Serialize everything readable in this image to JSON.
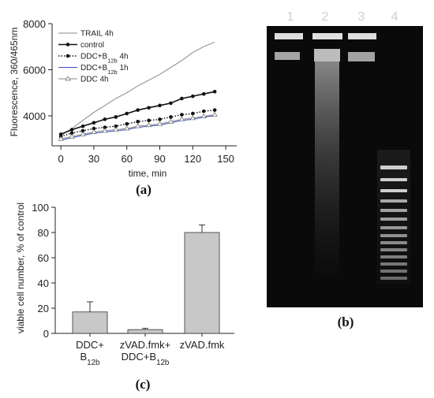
{
  "colors": {
    "axis": "#222222",
    "bar_fill": "#c8c8c8",
    "gel_bg": "#0a0a0a",
    "band": "#d8d8d8"
  },
  "chart_data": [
    {
      "id": "a",
      "type": "line",
      "panel_label": "(a)",
      "xlabel": "time, min",
      "ylabel": "Fluorescence, 360/465nm",
      "xlim": [
        -8,
        160
      ],
      "ylim": [
        2700,
        8000
      ],
      "xticks": [
        0,
        30,
        60,
        90,
        120,
        150
      ],
      "yticks": [
        4000,
        6000,
        8000
      ],
      "x": [
        0,
        10,
        20,
        30,
        40,
        50,
        60,
        70,
        80,
        90,
        100,
        110,
        120,
        130,
        140
      ],
      "series": [
        {
          "name": "TRAIL 4h",
          "style": "solid-gray",
          "values": [
            3150,
            3450,
            3800,
            4150,
            4450,
            4750,
            5000,
            5300,
            5550,
            5800,
            6100,
            6400,
            6750,
            7000,
            7200
          ]
        },
        {
          "name": "control",
          "style": "solid-black-dot",
          "values": [
            3200,
            3400,
            3550,
            3700,
            3850,
            3950,
            4100,
            4250,
            4350,
            4450,
            4550,
            4750,
            4850,
            4950,
            5050
          ]
        },
        {
          "name": "DDC+B12b 4h",
          "style": "dotted-black-dot",
          "values": [
            3100,
            3250,
            3350,
            3450,
            3500,
            3550,
            3650,
            3750,
            3800,
            3850,
            3950,
            4050,
            4100,
            4200,
            4250
          ]
        },
        {
          "name": "DDC+B12b 1h",
          "style": "solid-blue",
          "values": [
            2950,
            3050,
            3150,
            3250,
            3300,
            3350,
            3400,
            3500,
            3550,
            3600,
            3700,
            3800,
            3850,
            3950,
            4000
          ]
        },
        {
          "name": "DDC 4h",
          "style": "solid-gray-triangle",
          "values": [
            3000,
            3100,
            3200,
            3300,
            3350,
            3400,
            3450,
            3550,
            3600,
            3650,
            3750,
            3850,
            3900,
            3980,
            4050
          ]
        }
      ],
      "legend": [
        {
          "parts": [
            {
              "t": "TRAIL 4h"
            }
          ]
        },
        {
          "parts": [
            {
              "t": "control"
            }
          ]
        },
        {
          "parts": [
            {
              "t": "DDC+B"
            },
            {
              "t": "12b",
              "sub": true
            },
            {
              "t": " 4h"
            }
          ]
        },
        {
          "parts": [
            {
              "t": "DDC+B"
            },
            {
              "t": "12b",
              "sub": true
            },
            {
              "t": " 1h"
            }
          ]
        },
        {
          "parts": [
            {
              "t": "DDC 4h"
            }
          ]
        }
      ]
    },
    {
      "id": "c",
      "type": "bar",
      "panel_label": "(c)",
      "ylabel": "viable cell number, % of control",
      "ylim": [
        0,
        100
      ],
      "yticks": [
        0,
        20,
        40,
        60,
        80,
        100
      ],
      "categories": [
        {
          "lines": [
            [
              {
                "t": "DDC+"
              }
            ],
            [
              {
                "t": "B"
              },
              {
                "t": "12b",
                "sub": true
              }
            ]
          ]
        },
        {
          "lines": [
            [
              {
                "t": "zVAD.fmk+"
              }
            ],
            [
              {
                "t": "DDC+B"
              },
              {
                "t": "12b",
                "sub": true
              }
            ]
          ]
        },
        {
          "lines": [
            [
              {
                "t": "zVAD.fmk"
              }
            ]
          ]
        }
      ],
      "values": [
        17,
        3,
        80
      ],
      "errors": [
        8,
        1,
        6
      ]
    }
  ],
  "gel": {
    "panel_label": "(b)",
    "lanes": [
      "1",
      "2",
      "3",
      "4"
    ]
  }
}
